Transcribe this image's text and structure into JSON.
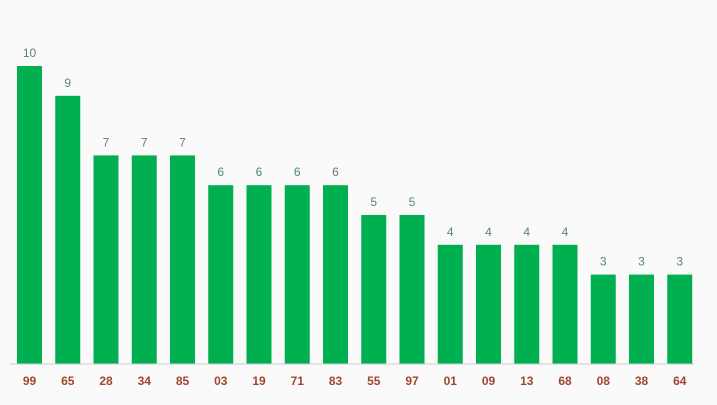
{
  "chart_data": {
    "type": "bar",
    "categories": [
      "99",
      "65",
      "28",
      "34",
      "85",
      "03",
      "19",
      "71",
      "83",
      "55",
      "97",
      "01",
      "09",
      "13",
      "68",
      "08",
      "38",
      "64"
    ],
    "values": [
      10,
      9,
      7,
      7,
      7,
      6,
      6,
      6,
      6,
      5,
      5,
      4,
      4,
      4,
      4,
      3,
      3,
      3
    ],
    "ylim": [
      0,
      10
    ],
    "grid": false,
    "data_labels": true,
    "colors": {
      "bar": "#00b050",
      "value_label": "#5a7f8a",
      "tick_label": "#a0462e",
      "axis": "#cccccc",
      "background": "#fafafa"
    }
  }
}
